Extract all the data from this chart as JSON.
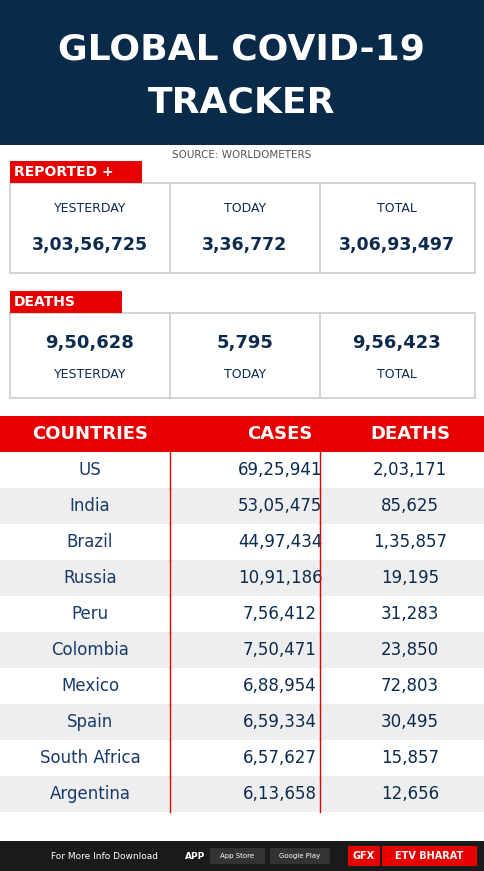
{
  "title_line1": "GLOBAL COVID-19",
  "title_line2": "TRACKER",
  "source": "SOURCE: WORLDOMETERS",
  "reported_label": "REPORTED +",
  "reported_cols": [
    "YESTERDAY",
    "TODAY",
    "TOTAL"
  ],
  "reported_vals": [
    "3,03,56,725",
    "3,36,772",
    "3,06,93,497"
  ],
  "deaths_label": "DEATHS",
  "deaths_vals": [
    "9,50,628",
    "5,795",
    "9,56,423"
  ],
  "deaths_col_labels": [
    "YESTERDAY",
    "TODAY",
    "TOTAL"
  ],
  "table_headers": [
    "COUNTRIES",
    "CASES",
    "DEATHS"
  ],
  "table_rows": [
    [
      "US",
      "69,25,941",
      "2,03,171"
    ],
    [
      "India",
      "53,05,475",
      "85,625"
    ],
    [
      "Brazil",
      "44,97,434",
      "1,35,857"
    ],
    [
      "Russia",
      "10,91,186",
      "19,195"
    ],
    [
      "Peru",
      "7,56,412",
      "31,283"
    ],
    [
      "Colombia",
      "7,50,471",
      "23,850"
    ],
    [
      "Mexico",
      "6,88,954",
      "72,803"
    ],
    [
      "Spain",
      "6,59,334",
      "30,495"
    ],
    [
      "South Africa",
      "6,57,627",
      "15,857"
    ],
    [
      "Argentina",
      "6,13,658",
      "12,656"
    ]
  ],
  "header_bg": "#0a2a4a",
  "red_color": "#e60000",
  "dark_navy": "#0d2b4e",
  "table_text_blue": "#1a3a6b",
  "alt_row_bg": "#eeeeee",
  "white": "#ffffff",
  "footer_bg": "#1a1a1a",
  "border_color": "#cccccc",
  "source_color": "#555555"
}
